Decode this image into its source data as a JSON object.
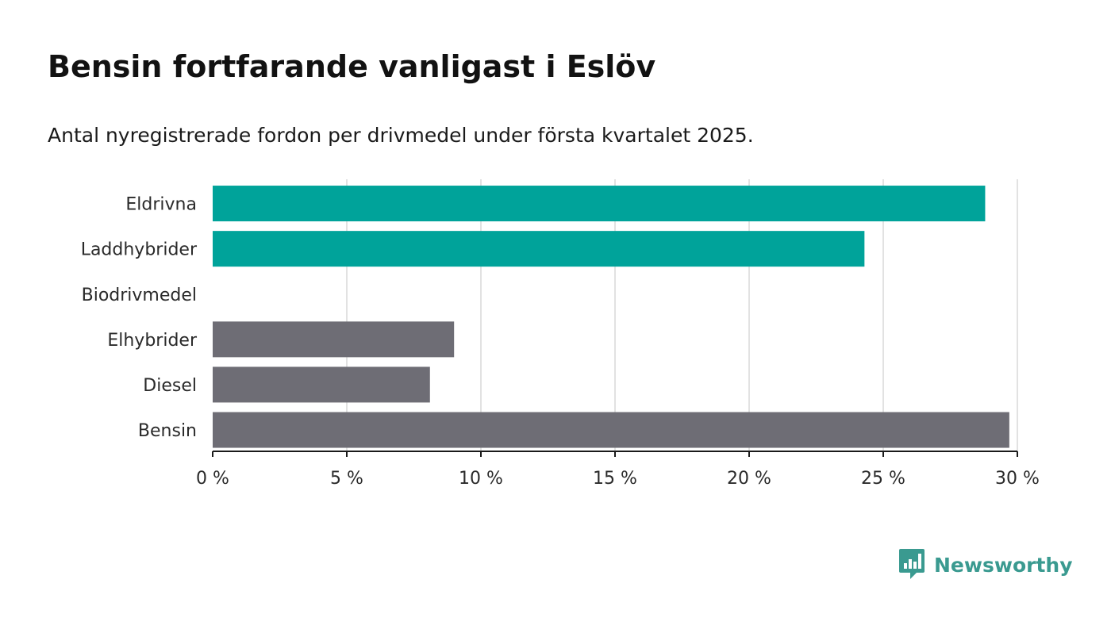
{
  "title": "Bensin fortfarande vanligast i Eslöv",
  "subtitle": "Antal nyregistrerade fordon per drivmedel under första kvartalet 2025.",
  "brand": {
    "name": "Newsworthy",
    "icon": "newsworthy-logo-icon",
    "color": "#3a9a90"
  },
  "chart_data": {
    "type": "bar",
    "orientation": "horizontal",
    "categories": [
      "Eldrivna",
      "Laddhybrider",
      "Biodrivmedel",
      "Elhybrider",
      "Diesel",
      "Bensin"
    ],
    "values": [
      28.8,
      24.3,
      0,
      9.0,
      8.1,
      29.7
    ],
    "colors": [
      "#00a39a",
      "#00a39a",
      "#00a39a",
      "#6e6d75",
      "#6e6d75",
      "#6e6d75"
    ],
    "xlim": [
      0,
      30
    ],
    "xticks": [
      0,
      5,
      10,
      15,
      20,
      25,
      30
    ],
    "xtick_labels": [
      "0 %",
      "5 %",
      "10 %",
      "15 %",
      "20 %",
      "25 %",
      "30 %"
    ],
    "grid": true,
    "xlabel": "",
    "ylabel": ""
  }
}
